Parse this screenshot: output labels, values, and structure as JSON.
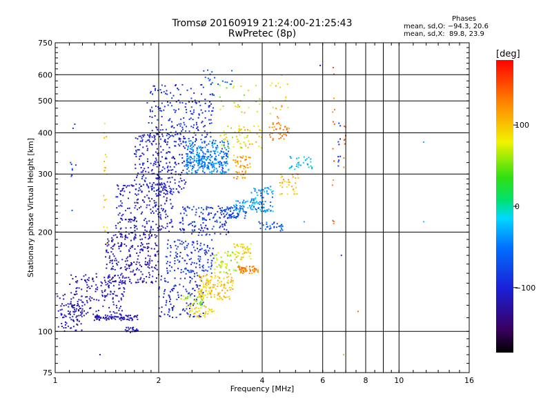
{
  "chart_data": {
    "type": "scatter",
    "title": "Tromsø 20160919 21:24:00-21:25:43",
    "subtitle": "RwPretec (8p)",
    "xlabel": "Frequency [MHz]",
    "ylabel": "Stationary phase Virtual Height [km]",
    "x_scale": "log",
    "y_scale": "log",
    "xlim": [
      1,
      16
    ],
    "ylim": [
      75,
      750
    ],
    "x_ticks": [
      1,
      2,
      4,
      6,
      8,
      10,
      16
    ],
    "x_tick_labels": [
      "1",
      "2",
      "4",
      "6",
      "8",
      "10",
      "16"
    ],
    "x_minor_ticks": [
      7,
      9
    ],
    "y_ticks": [
      75,
      100,
      200,
      300,
      400,
      500,
      600,
      750
    ],
    "y_tick_labels": [
      "75",
      "100",
      "200",
      "300",
      "400",
      "500",
      "600",
      "750"
    ],
    "grid": true,
    "color_scale": {
      "label": "[deg]",
      "ticks": [
        100,
        0,
        -100
      ],
      "tick_labels": [
        "100",
        "0",
        "−100"
      ],
      "range": [
        -180,
        180
      ]
    },
    "stats": {
      "heading": "Phases",
      "lines": [
        "mean, sd,O: −94.3, 20.6",
        "mean, sd,X:  89.8, 23.9"
      ]
    },
    "clusters": [
      {
        "x": [
          1.0,
          1.2
        ],
        "y": [
          100,
          130
        ],
        "n": 80,
        "phase": [
          -140,
          -100
        ]
      },
      {
        "x": [
          1.1,
          1.6
        ],
        "y": [
          110,
          150
        ],
        "n": 180,
        "phase": [
          -135,
          -95
        ]
      },
      {
        "x": [
          1.3,
          1.75
        ],
        "y": [
          108,
          112
        ],
        "n": 70,
        "phase": [
          -130,
          -105
        ]
      },
      {
        "x": [
          1.6,
          1.75
        ],
        "y": [
          99,
          103
        ],
        "n": 25,
        "phase": [
          -120,
          -95
        ]
      },
      {
        "x": [
          1.4,
          2.0
        ],
        "y": [
          140,
          200
        ],
        "n": 260,
        "phase": [
          -140,
          -95
        ]
      },
      {
        "x": [
          1.5,
          2.2
        ],
        "y": [
          200,
          280
        ],
        "n": 220,
        "phase": [
          -130,
          -90
        ]
      },
      {
        "x": [
          1.7,
          2.4
        ],
        "y": [
          260,
          400
        ],
        "n": 260,
        "phase": [
          -125,
          -85
        ]
      },
      {
        "x": [
          1.85,
          2.9
        ],
        "y": [
          380,
          560
        ],
        "n": 190,
        "phase": [
          -115,
          -75
        ]
      },
      {
        "x": [
          2.0,
          2.7
        ],
        "y": [
          110,
          150
        ],
        "n": 120,
        "phase": [
          -120,
          -80
        ]
      },
      {
        "x": [
          2.1,
          2.9
        ],
        "y": [
          150,
          190
        ],
        "n": 140,
        "phase": [
          -110,
          -60
        ]
      },
      {
        "x": [
          2.4,
          3.2
        ],
        "y": [
          300,
          380
        ],
        "n": 260,
        "phase": [
          -85,
          -20
        ]
      },
      {
        "x": [
          2.6,
          2.95
        ],
        "y": [
          310,
          340
        ],
        "n": 60,
        "phase": [
          -60,
          -20
        ]
      },
      {
        "x": [
          2.3,
          3.2
        ],
        "y": [
          195,
          240
        ],
        "n": 130,
        "phase": [
          -115,
          -65
        ]
      },
      {
        "x": [
          2.7,
          3.3
        ],
        "y": [
          560,
          620
        ],
        "n": 20,
        "phase": [
          -90,
          -50
        ]
      },
      {
        "x": [
          2.3,
          2.7
        ],
        "y": [
          120,
          130
        ],
        "n": 35,
        "phase": [
          40,
          90
        ]
      },
      {
        "x": [
          2.4,
          2.9
        ],
        "y": [
          110,
          120
        ],
        "n": 40,
        "phase": [
          70,
          110
        ]
      },
      {
        "x": [
          2.6,
          3.3
        ],
        "y": [
          125,
          150
        ],
        "n": 130,
        "phase": [
          80,
          120
        ]
      },
      {
        "x": [
          2.9,
          3.6
        ],
        "y": [
          150,
          175
        ],
        "n": 60,
        "phase": [
          40,
          100
        ]
      },
      {
        "x": [
          3.0,
          3.6
        ],
        "y": [
          220,
          240
        ],
        "n": 60,
        "phase": [
          -95,
          -60
        ]
      },
      {
        "x": [
          3.3,
          3.8
        ],
        "y": [
          230,
          250
        ],
        "n": 40,
        "phase": [
          -60,
          -10
        ]
      },
      {
        "x": [
          3.4,
          3.9
        ],
        "y": [
          150,
          158
        ],
        "n": 50,
        "phase": [
          110,
          150
        ]
      },
      {
        "x": [
          3.3,
          3.8
        ],
        "y": [
          165,
          185
        ],
        "n": 40,
        "phase": [
          60,
          120
        ]
      },
      {
        "x": [
          3.3,
          3.7
        ],
        "y": [
          290,
          340
        ],
        "n": 50,
        "phase": [
          90,
          140
        ]
      },
      {
        "x": [
          3.4,
          4.0
        ],
        "y": [
          360,
          420
        ],
        "n": 30,
        "phase": [
          60,
          120
        ]
      },
      {
        "x": [
          3.0,
          3.5
        ],
        "y": [
          340,
          420
        ],
        "n": 30,
        "phase": [
          50,
          110
        ]
      },
      {
        "x": [
          3.7,
          4.3
        ],
        "y": [
          230,
          275
        ],
        "n": 80,
        "phase": [
          -70,
          -10
        ]
      },
      {
        "x": [
          3.9,
          4.6
        ],
        "y": [
          200,
          215
        ],
        "n": 30,
        "phase": [
          -95,
          -40
        ]
      },
      {
        "x": [
          4.2,
          4.8
        ],
        "y": [
          380,
          430
        ],
        "n": 40,
        "phase": [
          110,
          150
        ]
      },
      {
        "x": [
          4.5,
          5.1
        ],
        "y": [
          260,
          300
        ],
        "n": 35,
        "phase": [
          80,
          120
        ]
      },
      {
        "x": [
          4.8,
          5.6
        ],
        "y": [
          310,
          340
        ],
        "n": 30,
        "phase": [
          -40,
          0
        ]
      },
      {
        "x": [
          3.0,
          4.0
        ],
        "y": [
          460,
          560
        ],
        "n": 25,
        "phase": [
          40,
          110
        ]
      },
      {
        "x": [
          4.2,
          4.8
        ],
        "y": [
          440,
          600
        ],
        "n": 20,
        "phase": [
          80,
          130
        ]
      },
      {
        "x": [
          6.4,
          6.5
        ],
        "y": [
          210,
          640
        ],
        "n": 14,
        "phase": [
          110,
          170
        ]
      },
      {
        "x": [
          6.65,
          6.75
        ],
        "y": [
          300,
          450
        ],
        "n": 10,
        "phase": [
          -110,
          -70
        ]
      },
      {
        "x": [
          6.9,
          7.0
        ],
        "y": [
          300,
          420
        ],
        "n": 8,
        "phase": [
          120,
          160
        ]
      },
      {
        "x": [
          1.38,
          1.42
        ],
        "y": [
          170,
          430
        ],
        "n": 22,
        "phase": [
          80,
          110
        ]
      },
      {
        "x": [
          1.1,
          1.15
        ],
        "y": [
          230,
          470
        ],
        "n": 10,
        "phase": [
          -95,
          -60
        ]
      }
    ],
    "outliers": [
      {
        "x": 1.35,
        "y": 85,
        "phase": -110
      },
      {
        "x": 6.9,
        "y": 85,
        "phase": 60
      },
      {
        "x": 7.6,
        "y": 115,
        "phase": 140
      },
      {
        "x": 6.8,
        "y": 170,
        "phase": -90
      },
      {
        "x": 11.8,
        "y": 215,
        "phase": -20
      },
      {
        "x": 11.8,
        "y": 375,
        "phase": -30
      },
      {
        "x": 5.9,
        "y": 640,
        "phase": -110
      },
      {
        "x": 5.3,
        "y": 215,
        "phase": -30
      }
    ]
  }
}
